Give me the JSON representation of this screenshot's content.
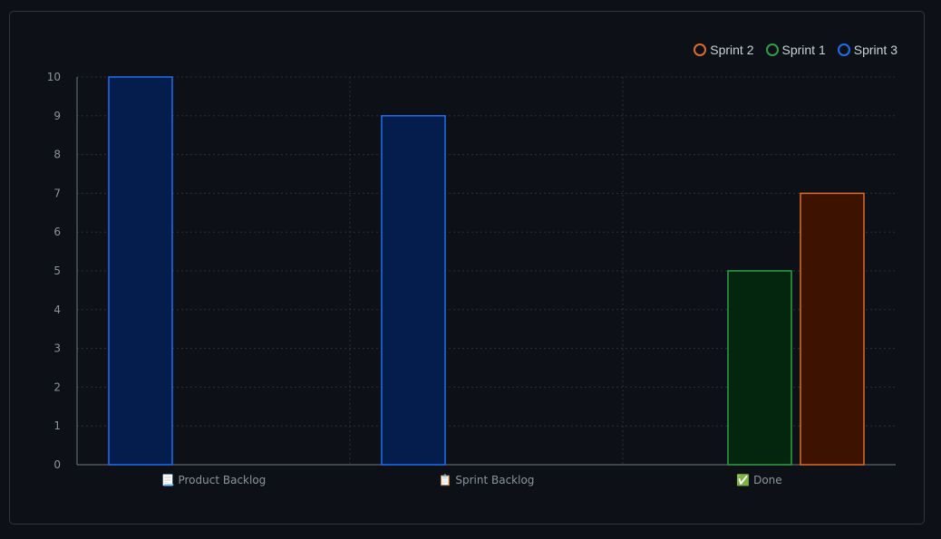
{
  "chart_data": {
    "type": "bar",
    "categories": [
      "📃 Product Backlog",
      "📋 Sprint Backlog",
      "✅ Done"
    ],
    "series": [
      {
        "name": "Sprint 1",
        "values": [
          0,
          0,
          5
        ],
        "stroke": "#2ea043",
        "fill": "#04260f"
      },
      {
        "name": "Sprint 2",
        "values": [
          0,
          0,
          7
        ],
        "stroke": "#db6d28",
        "fill": "#3d1300"
      },
      {
        "name": "Sprint 3",
        "values": [
          10,
          9,
          0
        ],
        "stroke": "#1f6feb",
        "fill": "#051d4d"
      }
    ],
    "legend_order": [
      "Sprint 2",
      "Sprint 1",
      "Sprint 3"
    ],
    "ylim": [
      0,
      10
    ],
    "yticks": [
      0,
      1,
      2,
      3,
      4,
      5,
      6,
      7,
      8,
      9,
      10
    ],
    "grid": true,
    "legend_position": "top-right"
  }
}
